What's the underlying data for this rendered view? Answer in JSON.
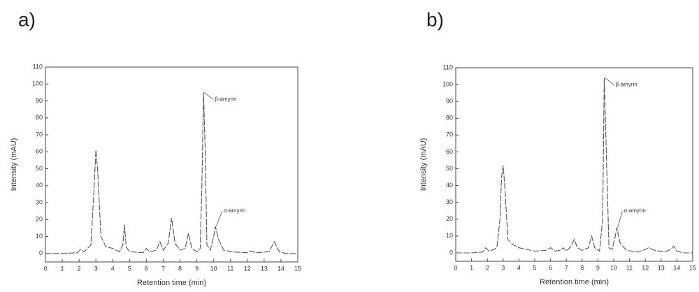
{
  "chart_data": [
    {
      "type": "line",
      "panel_label": "a)",
      "x_label": "Retention time (min)",
      "y_label": "Intensity (mAU)",
      "x": [
        0,
        1,
        1.9,
        2.1,
        2.3,
        2.7,
        2.9,
        3.0,
        3.1,
        3.3,
        3.6,
        4.0,
        4.4,
        4.6,
        4.7,
        4.8,
        5.0,
        5.8,
        6.0,
        6.2,
        6.6,
        6.8,
        7.0,
        7.3,
        7.5,
        7.7,
        8.0,
        8.3,
        8.5,
        8.7,
        9.0,
        9.2,
        9.3,
        9.4,
        9.5,
        9.6,
        9.8,
        10.0,
        10.1,
        10.3,
        10.6,
        11.0,
        12.0,
        12.2,
        12.5,
        13.3,
        13.6,
        13.9,
        14.3,
        15
      ],
      "values": [
        0,
        0,
        0.5,
        2.5,
        1,
        5,
        40,
        61,
        50,
        10,
        4,
        3,
        1,
        5,
        17,
        4,
        1,
        0.5,
        3,
        1,
        2,
        7,
        2,
        6,
        21,
        6,
        2,
        3,
        12,
        3,
        1,
        3,
        40,
        95,
        60,
        5,
        2,
        10,
        16,
        8,
        2,
        1,
        0.5,
        1.5,
        0.5,
        1,
        7,
        1,
        0,
        0
      ],
      "color": "#555555",
      "line_style": "dashed",
      "annotations": [
        {
          "text": "β-amyrin",
          "x": 9.4,
          "y": 95
        },
        {
          "text": "α-amyrin",
          "x": 10.1,
          "y": 16
        }
      ],
      "xlim": [
        0,
        15
      ],
      "ylim": [
        -5,
        110
      ],
      "xticks": [
        0,
        1,
        2,
        3,
        4,
        5,
        6,
        7,
        8,
        9,
        10,
        11,
        12,
        13,
        14,
        15
      ],
      "yticks": [
        0,
        10,
        20,
        30,
        40,
        50,
        60,
        70,
        80,
        90,
        100,
        110
      ]
    },
    {
      "type": "line",
      "panel_label": "b)",
      "x_label": "Retention time (min)",
      "y_label": "Intensity (mAU)",
      "x": [
        0,
        1,
        1.7,
        1.9,
        2.1,
        2.4,
        2.6,
        2.8,
        2.9,
        3.0,
        3.1,
        3.3,
        3.6,
        4.0,
        5.0,
        5.7,
        6.0,
        6.3,
        6.6,
        6.8,
        7.0,
        7.3,
        7.5,
        7.7,
        8.0,
        8.4,
        8.6,
        8.8,
        9.1,
        9.3,
        9.4,
        9.5,
        9.7,
        9.9,
        10.1,
        10.2,
        10.4,
        10.8,
        11.5,
        12.0,
        12.2,
        12.6,
        13.2,
        13.6,
        13.8,
        14.0,
        14.4,
        15
      ],
      "values": [
        0,
        0,
        0.5,
        3,
        1,
        2,
        3,
        20,
        45,
        52,
        40,
        8,
        5,
        3,
        1,
        1.5,
        3,
        1,
        1.5,
        3,
        1,
        4,
        8,
        3,
        1.5,
        3,
        10,
        3,
        1,
        20,
        104,
        70,
        3,
        2,
        10,
        15,
        6,
        1.5,
        0.5,
        2,
        3,
        1.5,
        0.5,
        2,
        4,
        1,
        0,
        0
      ],
      "color": "#555555",
      "line_style": "dashed",
      "annotations": [
        {
          "text": "β-amyrin",
          "x": 9.4,
          "y": 104
        },
        {
          "text": "α-amyrin",
          "x": 10.2,
          "y": 15
        }
      ],
      "xlim": [
        0,
        15
      ],
      "ylim": [
        -5,
        110
      ],
      "xticks": [
        0,
        1,
        2,
        3,
        4,
        5,
        6,
        7,
        8,
        9,
        10,
        11,
        12,
        13,
        14,
        15
      ],
      "yticks": [
        0,
        10,
        20,
        30,
        40,
        50,
        60,
        70,
        80,
        90,
        100,
        110
      ]
    }
  ]
}
